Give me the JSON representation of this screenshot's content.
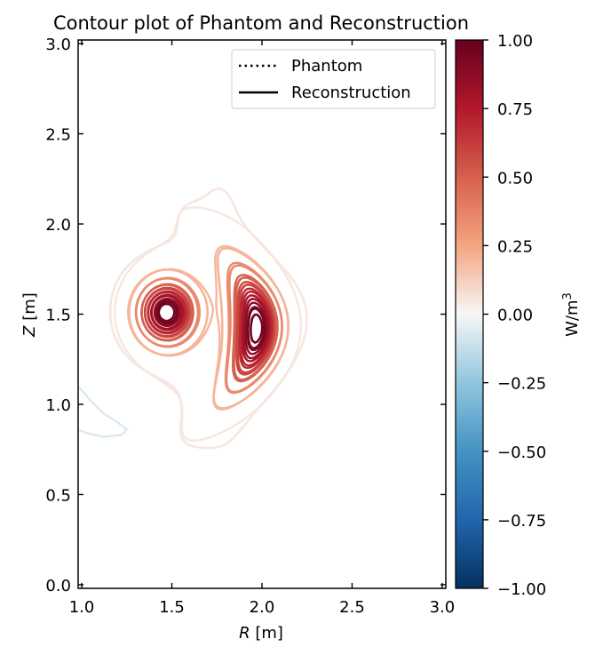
{
  "chart_data": {
    "type": "contour",
    "title": "Contour plot of Phantom and Reconstruction",
    "xlabel_var": "R",
    "xlabel_unit": "[m]",
    "ylabel_var": "Z",
    "ylabel_unit": "[m]",
    "xlim": [
      0.98,
      3.02
    ],
    "ylim": [
      -0.02,
      3.02
    ],
    "x_ticks": [
      "1.0",
      "1.5",
      "2.0",
      "2.5",
      "3.0"
    ],
    "x_tick_values": [
      1.0,
      1.5,
      2.0,
      2.5,
      3.0
    ],
    "y_ticks": [
      "0.0",
      "0.5",
      "1.0",
      "1.5",
      "2.0",
      "2.5",
      "3.0"
    ],
    "y_tick_values": [
      0.0,
      0.5,
      1.0,
      1.5,
      2.0,
      2.5,
      3.0
    ],
    "legend": {
      "position": "upper right",
      "entries": [
        {
          "label": "Phantom",
          "style": "dotted"
        },
        {
          "label": "Reconstruction",
          "style": "solid"
        }
      ]
    },
    "colorbar": {
      "label_base": "W/m",
      "label_sup": "3",
      "colormap": "RdBu_r",
      "range": [
        -1.0,
        1.0
      ],
      "ticks": [
        "1.00",
        "0.75",
        "0.50",
        "0.25",
        "0.00",
        "−0.25",
        "−0.50",
        "−0.75",
        "−1.00"
      ],
      "tick_values": [
        1.0,
        0.75,
        0.5,
        0.25,
        0.0,
        -0.25,
        -0.5,
        -0.75,
        -1.0
      ]
    },
    "sources": [
      {
        "name": "left blob",
        "center_R": 1.47,
        "center_Z": 1.51,
        "peak": 1.0
      },
      {
        "name": "right crescent",
        "center_R": 1.97,
        "center_Z": 1.42,
        "peak": 1.0
      }
    ],
    "contour_levels": [
      0.05,
      0.2,
      0.35,
      0.5,
      0.6,
      0.7,
      0.8,
      0.9,
      0.97
    ],
    "negative_contour": {
      "level": -0.03,
      "R_range": [
        0.98,
        1.25
      ],
      "Z_range": [
        0.8,
        1.1
      ]
    },
    "grid": false
  }
}
